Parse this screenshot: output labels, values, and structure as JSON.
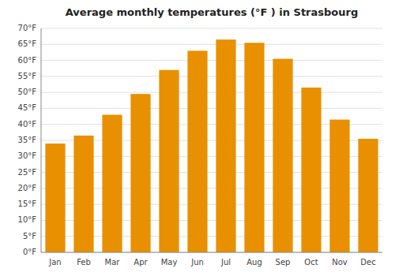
{
  "chart_data": {
    "type": "bar",
    "title": "Average monthly temperatures (°F ) in Strasbourg",
    "categories": [
      "Jan",
      "Feb",
      "Mar",
      "Apr",
      "May",
      "Jun",
      "Jul",
      "Aug",
      "Sep",
      "Oct",
      "Nov",
      "Dec"
    ],
    "values": [
      34,
      36.5,
      43,
      49.5,
      57,
      63,
      66.5,
      65.5,
      60.5,
      51.5,
      41.5,
      35.5
    ],
    "color": "#E89000",
    "ylim": [
      0,
      70
    ],
    "yticks": [
      {
        "value": 0,
        "label": "0°F"
      },
      {
        "value": 5,
        "label": "5°F"
      },
      {
        "value": 10,
        "label": "10°F"
      },
      {
        "value": 15,
        "label": "15°F"
      },
      {
        "value": 20,
        "label": "20°F"
      },
      {
        "value": 25,
        "label": "25°F"
      },
      {
        "value": 30,
        "label": "30°F"
      },
      {
        "value": 35,
        "label": "35°F"
      },
      {
        "value": 40,
        "label": "40°F"
      },
      {
        "value": 45,
        "label": "45°F"
      },
      {
        "value": 50,
        "label": "50°F"
      },
      {
        "value": 55,
        "label": "55°F"
      },
      {
        "value": 60,
        "label": "60°F"
      },
      {
        "value": 65,
        "label": "65°F"
      },
      {
        "value": 70,
        "label": "70°F"
      }
    ],
    "grid": true
  }
}
